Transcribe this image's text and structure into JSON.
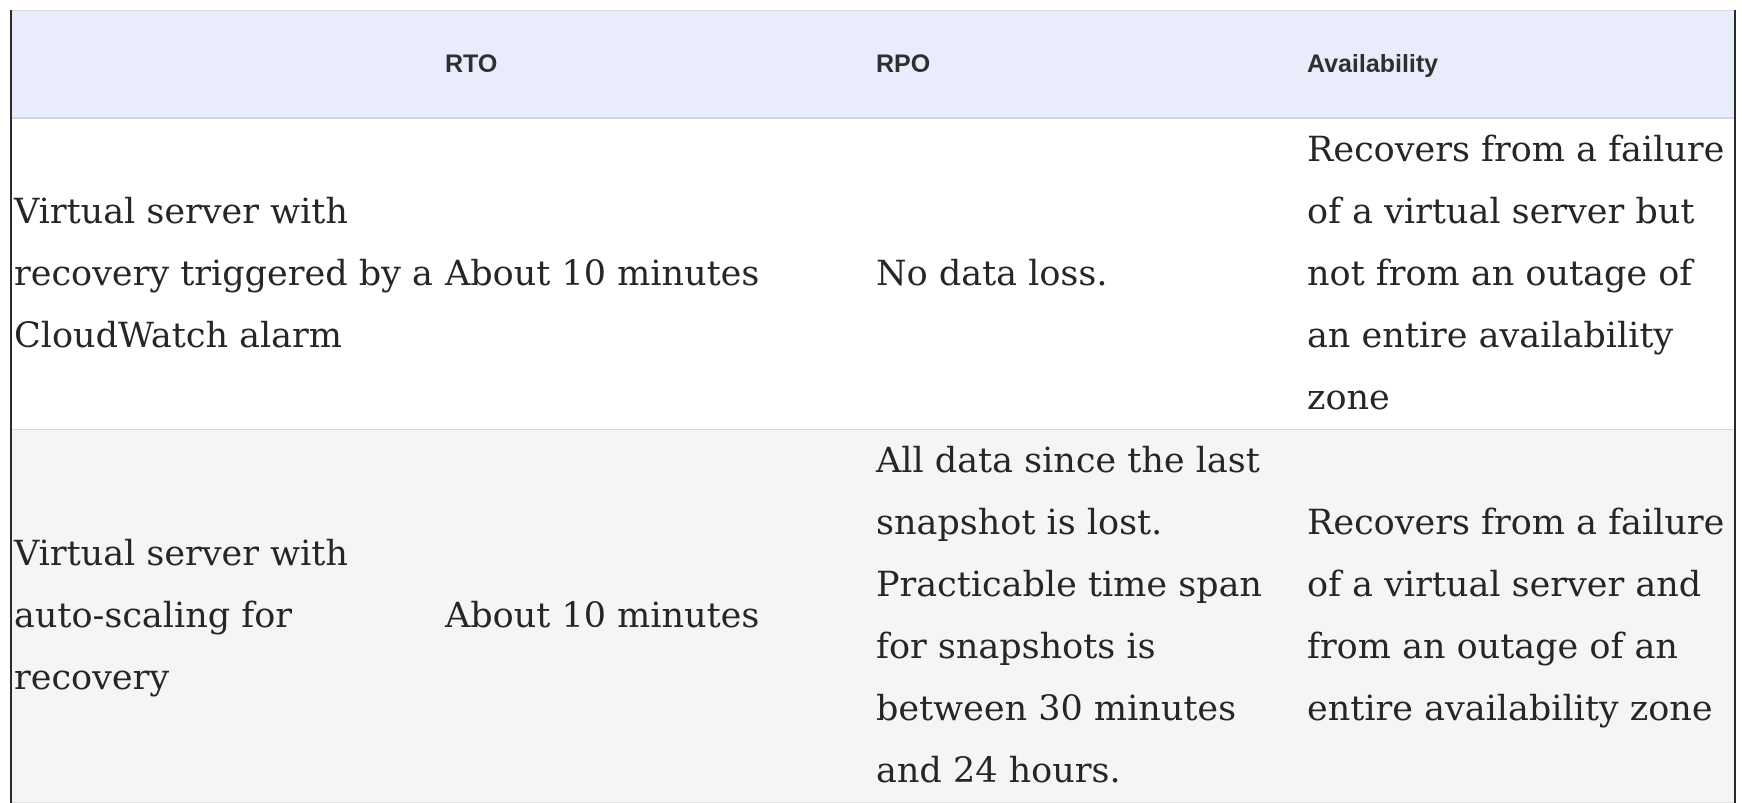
{
  "table": {
    "headers": [
      "",
      "RTO",
      "RPO",
      "Availability"
    ],
    "rows": [
      {
        "approach": "Virtual server with recovery triggered by a CloudWatch alarm",
        "rto": "About 10 minutes",
        "rpo": "No data loss.",
        "availability": "Recovers from a failure of a virtual server but not from an outage of an entire availability zone"
      },
      {
        "approach": "Virtual server with auto-scaling for recovery",
        "rto": "About 10 minutes",
        "rpo": "All data since the last snapshot is lost. Practicable time span for snapshots is between 30 minutes and 24 hours.",
        "availability": "Recovers from a failure of a virtual server and from an outage of an entire availability zone"
      }
    ]
  }
}
